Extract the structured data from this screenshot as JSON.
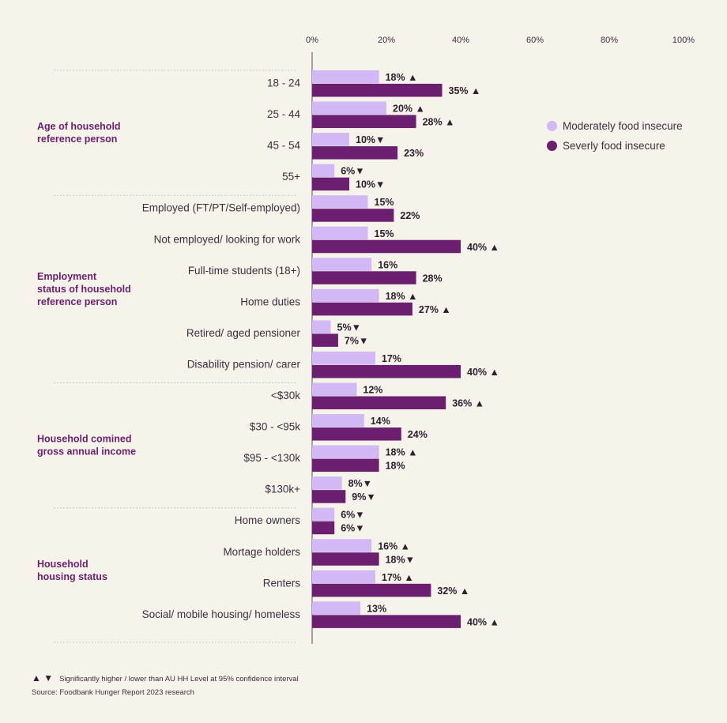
{
  "chart_data": {
    "type": "bar",
    "orientation": "horizontal",
    "x_ticks": [
      "0%",
      "20%",
      "40%",
      "60%",
      "80%",
      "100%"
    ],
    "xlim": [
      0,
      100
    ],
    "legend_position": "right",
    "groups": [
      {
        "label": "Age of household\nreference person",
        "categories": [
          "18 - 24",
          "25 - 44",
          "45 - 54",
          "55+"
        ]
      },
      {
        "label": "Employment\nstatus of household\nreference person",
        "categories": [
          "Employed (FT/PT/Self-employed)",
          "Not employed/ looking for work",
          "Full-time students (18+)",
          "Home duties",
          "Retired/ aged pensioner",
          "Disability pension/ carer"
        ]
      },
      {
        "label": "Household comined\ngross annual income",
        "categories": [
          "<$30k",
          "$30 - <95k",
          "$95 - <130k",
          "$130k+"
        ]
      },
      {
        "label": "Household\nhousing status",
        "categories": [
          "Home owners",
          "Mortage holders",
          "Renters",
          "Social/ mobile housing/ homeless"
        ]
      }
    ],
    "series": [
      {
        "name": "Moderately food insecure",
        "color": "#d2b8f5",
        "values": [
          18,
          20,
          10,
          6,
          15,
          15,
          16,
          18,
          5,
          17,
          12,
          14,
          18,
          8,
          6,
          16,
          17,
          13
        ],
        "significance": [
          "up",
          "up",
          "down",
          "down",
          "",
          "",
          "",
          "up",
          "down",
          "",
          "",
          "",
          "up",
          "down",
          "down",
          "up",
          "up",
          ""
        ]
      },
      {
        "name": "Severly food insecure",
        "color": "#6b1f6e",
        "values": [
          35,
          28,
          23,
          10,
          22,
          40,
          28,
          27,
          7,
          40,
          36,
          24,
          18,
          9,
          6,
          18,
          32,
          40
        ],
        "significance": [
          "up",
          "up",
          "",
          "down",
          "",
          "up",
          "",
          "up",
          "down",
          "up",
          "up",
          "",
          "",
          "down",
          "down",
          "down",
          "up",
          "up"
        ]
      }
    ]
  },
  "footnote": {
    "arrows": "▲ ▼",
    "significance_text": "Significantly higher /  lower than AU HH Level at 95% confidence interval",
    "source_text": "Source: Foodbank Hunger Report 2023 research"
  }
}
